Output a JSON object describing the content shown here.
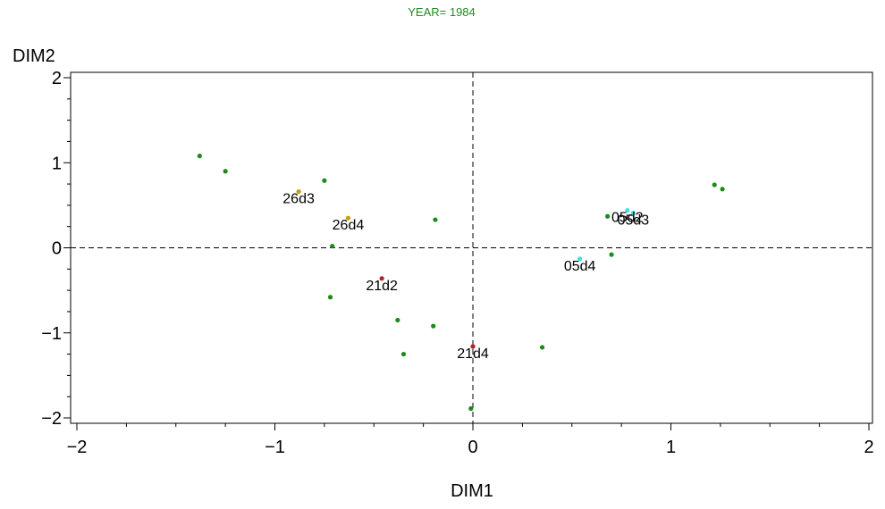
{
  "chart_data": {
    "type": "scatter",
    "title": "YEAR= 1984",
    "xlabel": "DIM1",
    "ylabel": "DIM2",
    "xlim": [
      -2,
      2
    ],
    "ylim": [
      -2,
      2
    ],
    "xticks": [
      -2,
      -1,
      0,
      1,
      2
    ],
    "yticks": [
      -2,
      -1,
      0,
      1,
      2
    ],
    "xtick_labels": [
      "−2",
      "−1",
      "0",
      "1",
      "2"
    ],
    "ytick_labels": [
      "−2",
      "−1",
      "0",
      "1",
      "2"
    ],
    "reference_lines": {
      "x": 0,
      "y": 0,
      "style": "dashed"
    },
    "colors": {
      "title": "#228B22",
      "unlabeled": "#1a8c1a",
      "d3": "#c89c00",
      "d2": "#b22222",
      "cyan": "#40e0e0"
    },
    "points": [
      {
        "x": -1.38,
        "y": 1.08,
        "label": "",
        "color": "#1a8c1a"
      },
      {
        "x": -1.25,
        "y": 0.9,
        "label": "",
        "color": "#1a8c1a"
      },
      {
        "x": -0.75,
        "y": 0.79,
        "label": "",
        "color": "#1a8c1a"
      },
      {
        "x": -0.88,
        "y": 0.66,
        "label": "26d3",
        "color": "#c89c00"
      },
      {
        "x": -0.63,
        "y": 0.35,
        "label": "26d4",
        "color": "#c89c00"
      },
      {
        "x": -0.19,
        "y": 0.33,
        "label": "",
        "color": "#1a8c1a"
      },
      {
        "x": -0.71,
        "y": 0.02,
        "label": "",
        "color": "#1a8c1a"
      },
      {
        "x": -0.46,
        "y": -0.36,
        "label": "21d2",
        "color": "#b22222"
      },
      {
        "x": -0.72,
        "y": -0.58,
        "label": "",
        "color": "#1a8c1a"
      },
      {
        "x": -0.38,
        "y": -0.85,
        "label": "",
        "color": "#1a8c1a"
      },
      {
        "x": -0.2,
        "y": -0.92,
        "label": "",
        "color": "#1a8c1a"
      },
      {
        "x": -0.35,
        "y": -1.25,
        "label": "",
        "color": "#1a8c1a"
      },
      {
        "x": 0.0,
        "y": -1.16,
        "label": "21d4",
        "color": "#b22222"
      },
      {
        "x": -0.01,
        "y": -1.89,
        "label": "",
        "color": "#1a8c1a"
      },
      {
        "x": 0.35,
        "y": -1.17,
        "label": "",
        "color": "#1a8c1a"
      },
      {
        "x": 0.54,
        "y": -0.13,
        "label": "05d4",
        "color": "#40e0e0"
      },
      {
        "x": 0.7,
        "y": -0.08,
        "label": "",
        "color": "#1a8c1a"
      },
      {
        "x": 0.68,
        "y": 0.37,
        "label": "",
        "color": "#1a8c1a"
      },
      {
        "x": 0.78,
        "y": 0.44,
        "label": "05d2",
        "color": "#40e0e0"
      },
      {
        "x": 0.81,
        "y": 0.41,
        "label": "05d3",
        "color": "#40e0e0"
      },
      {
        "x": 1.22,
        "y": 0.74,
        "label": "",
        "color": "#1a8c1a"
      },
      {
        "x": 1.26,
        "y": 0.69,
        "label": "",
        "color": "#1a8c1a"
      }
    ]
  }
}
